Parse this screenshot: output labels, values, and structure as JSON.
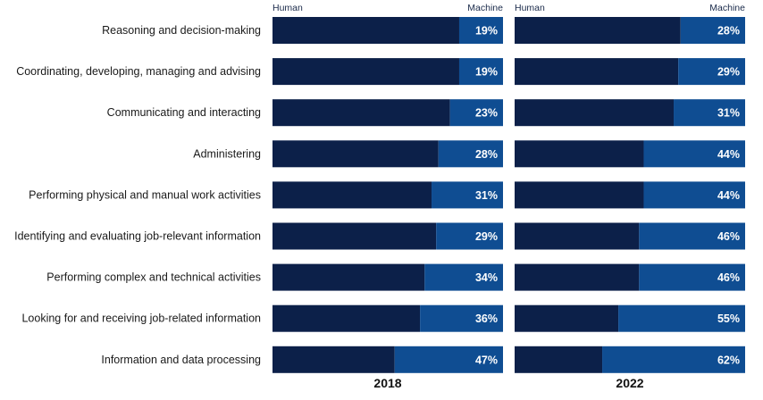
{
  "chart_data": {
    "type": "bar",
    "stacked": true,
    "orientation": "horizontal",
    "value_unit": "%",
    "segment_labels": {
      "human": "Human",
      "machine": "Machine"
    },
    "colors": {
      "human": "#0c2049",
      "machine": "#0f4d92"
    },
    "categories": [
      "Reasoning and decision-making",
      "Coordinating, developing, managing and advising",
      "Communicating and interacting",
      "Administering",
      "Performing physical and manual work activities",
      "Identifying and evaluating job-relevant information",
      "Performing complex and technical activities",
      "Looking for and receiving job-related information",
      "Information and data processing"
    ],
    "panels": [
      {
        "year": "2018",
        "machine": [
          19,
          19,
          23,
          28,
          31,
          29,
          34,
          36,
          47
        ]
      },
      {
        "year": "2022",
        "machine": [
          28,
          29,
          31,
          44,
          44,
          46,
          46,
          55,
          62
        ]
      }
    ],
    "xlim": [
      0,
      100
    ]
  }
}
